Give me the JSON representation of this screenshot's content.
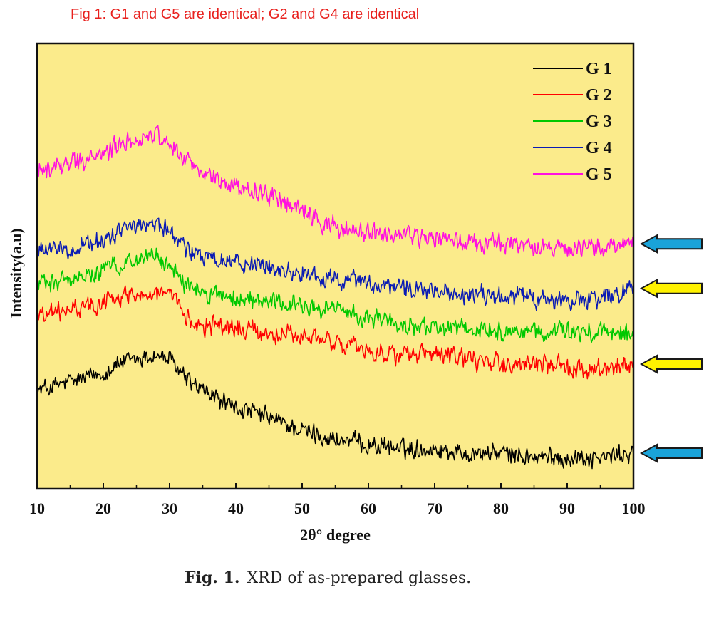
{
  "annotation": "Fig 1: G1 and G5 are identical; G2 and G4 are identical",
  "caption": {
    "label": "Fig. 1.",
    "text": "XRD of as-prepared glasses."
  },
  "colors": {
    "plot_background": "#fbeb8b",
    "G1": "#000000",
    "G2": "#ff0000",
    "G3": "#00c800",
    "G4": "#0a1bb4",
    "G5": "#ff10e0",
    "arrow_blue": "#1aa3d9",
    "arrow_yellow": "#fff200",
    "annotation": "#e8201d"
  },
  "chart_data": {
    "type": "line",
    "title": "",
    "xlabel": "2θ° degree",
    "ylabel": "Intensity(a.u)",
    "xlim": [
      10,
      100
    ],
    "ylim": [
      0,
      100
    ],
    "x_ticks": [
      "10",
      "20",
      "30",
      "40",
      "50",
      "60",
      "70",
      "80",
      "90",
      "100"
    ],
    "legend_position": "top-right",
    "notes": "y values are relative intensity (arbitrary units, 0-100 scale estimated from the plot); traces are noisy amorphous humps",
    "series": [
      {
        "name": "G 1",
        "color_key": "G1",
        "x": [
          10,
          15,
          20,
          22,
          25,
          28,
          30,
          33,
          35,
          40,
          45,
          50,
          55,
          60,
          65,
          70,
          75,
          80,
          85,
          90,
          95,
          100
        ],
        "values": [
          22,
          24,
          26,
          28,
          29,
          30,
          29,
          24,
          22,
          18,
          16,
          13,
          11,
          10,
          9,
          9,
          8,
          8,
          7,
          7,
          7,
          8
        ]
      },
      {
        "name": "G 2",
        "color_key": "G2",
        "x": [
          10,
          15,
          20,
          25,
          28,
          30,
          33,
          35,
          40,
          45,
          50,
          55,
          60,
          65,
          70,
          75,
          80,
          85,
          90,
          95,
          100
        ],
        "values": [
          39,
          40,
          42,
          44,
          44,
          43,
          38,
          37,
          36,
          35,
          34,
          33,
          31,
          30,
          30,
          29,
          28,
          28,
          27,
          27,
          28
        ]
      },
      {
        "name": "G 3",
        "color_key": "G3",
        "x": [
          10,
          15,
          20,
          25,
          28,
          30,
          33,
          35,
          40,
          45,
          50,
          55,
          60,
          65,
          70,
          75,
          80,
          85,
          90,
          95,
          100
        ],
        "values": [
          46,
          47,
          49,
          52,
          52,
          50,
          45,
          44,
          43,
          42,
          41,
          40,
          38,
          37,
          36,
          36,
          35,
          35,
          35,
          35,
          35
        ]
      },
      {
        "name": "G 4",
        "color_key": "G4",
        "x": [
          10,
          15,
          20,
          25,
          28,
          30,
          33,
          35,
          40,
          45,
          50,
          55,
          60,
          65,
          70,
          75,
          80,
          85,
          90,
          95,
          100
        ],
        "values": [
          53,
          54,
          56,
          59,
          60,
          58,
          53,
          52,
          51,
          50,
          48,
          47,
          46,
          45,
          44,
          44,
          43,
          43,
          42,
          43,
          45
        ]
      },
      {
        "name": "G 5",
        "color_key": "G5",
        "x": [
          10,
          15,
          20,
          22,
          25,
          28,
          30,
          33,
          35,
          40,
          45,
          50,
          55,
          60,
          65,
          70,
          75,
          80,
          85,
          90,
          95,
          100
        ],
        "values": [
          71,
          73,
          75,
          77,
          78,
          79,
          78,
          73,
          71,
          68,
          66,
          62,
          59,
          57,
          57,
          56,
          55,
          55,
          54,
          54,
          54,
          55
        ]
      }
    ],
    "arrows": [
      {
        "series": "G 5",
        "color_key": "arrow_blue"
      },
      {
        "series": "G 4",
        "color_key": "arrow_yellow"
      },
      {
        "series": "G 2",
        "color_key": "arrow_yellow"
      },
      {
        "series": "G 1",
        "color_key": "arrow_blue"
      }
    ]
  }
}
